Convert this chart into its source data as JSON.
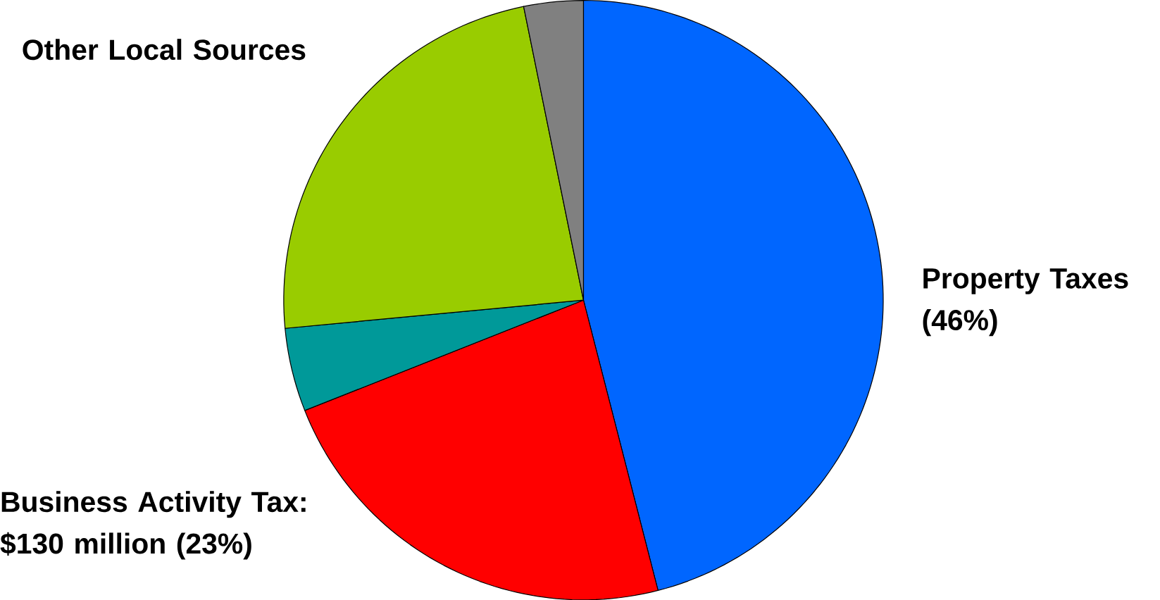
{
  "chart_data": {
    "type": "pie",
    "categories": [
      "Property Taxes (46%)",
      "Business Activity Tax: $130 million (23%)",
      null,
      "Other Local Sources",
      null
    ],
    "values": [
      46,
      23,
      4.5,
      23.3,
      3.2
    ],
    "colors": [
      "#0066ff",
      "#ff0000",
      "#009999",
      "#99cc00",
      "#808080"
    ]
  }
}
